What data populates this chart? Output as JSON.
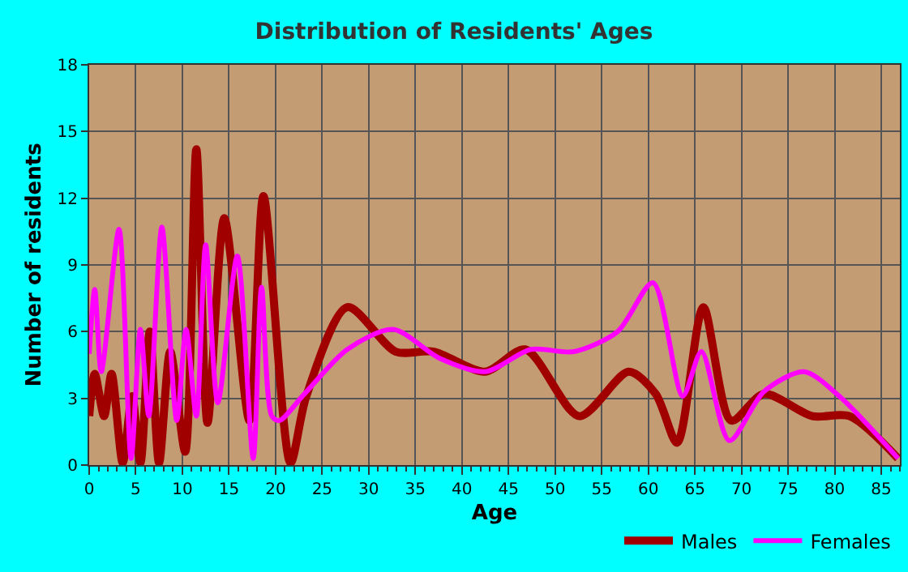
{
  "chart_data": {
    "type": "line",
    "title": "Distribution of Residents' Ages",
    "xlabel": "Age",
    "ylabel": "Number of residents",
    "xlim": [
      0,
      87
    ],
    "xticks": [
      0,
      5,
      10,
      15,
      20,
      25,
      30,
      35,
      40,
      45,
      50,
      55,
      60,
      65,
      70,
      75,
      80,
      85
    ],
    "ylim": [
      0,
      18
    ],
    "yticks": [
      0,
      3,
      6,
      9,
      12,
      15,
      18
    ],
    "grid": true,
    "legend": "bottom right",
    "series": [
      {
        "name": "Males",
        "color": "#a00000",
        "x": [
          0,
          0.6,
          1.6,
          2.4,
          3.6,
          4.6,
          5.5,
          6.5,
          7.5,
          8.7,
          10.3,
          11.5,
          12.7,
          14.5,
          17.2,
          18.7,
          21.6,
          23.3,
          27.7,
          32.9,
          37,
          42.5,
          46.8,
          52.6,
          57.9,
          60.8,
          63.1,
          65.9,
          68.9,
          72.4,
          77.6,
          81.6,
          86.8
        ],
        "values": [
          2.2,
          4.1,
          2.2,
          4.1,
          0.1,
          3.1,
          0.1,
          6,
          0.1,
          5.1,
          0.6,
          14.2,
          1.9,
          11.1,
          2,
          12.1,
          0.1,
          3.1,
          7.1,
          5.1,
          5.1,
          4.2,
          5.2,
          2.2,
          4.2,
          3.2,
          1,
          7.1,
          2,
          3.2,
          2.2,
          2.2,
          0.3
        ]
      },
      {
        "name": "Females",
        "color": "#ff00ff",
        "x": [
          0,
          0.6,
          1.3,
          3.2,
          4.5,
          5.5,
          6.4,
          7.8,
          9.4,
          10.4,
          11.5,
          12.5,
          13.8,
          15.9,
          17.6,
          18.5,
          19.6,
          20.4,
          23.1,
          27.7,
          32.6,
          37.6,
          42.5,
          47.4,
          52,
          56.7,
          60.5,
          63.7,
          65.7,
          68.7,
          72.4,
          76.7,
          80.5,
          86.8
        ],
        "values": [
          5,
          7.9,
          4.2,
          10.6,
          0.3,
          6.1,
          2.2,
          10.7,
          2,
          6.1,
          2.2,
          9.9,
          2.8,
          9.4,
          0.3,
          8,
          2.2,
          2,
          3.2,
          5.2,
          6.1,
          4.8,
          4.2,
          5.2,
          5.1,
          6,
          8.2,
          3.1,
          5.1,
          1.1,
          3.3,
          4.2,
          3.1,
          0.3
        ]
      }
    ]
  }
}
